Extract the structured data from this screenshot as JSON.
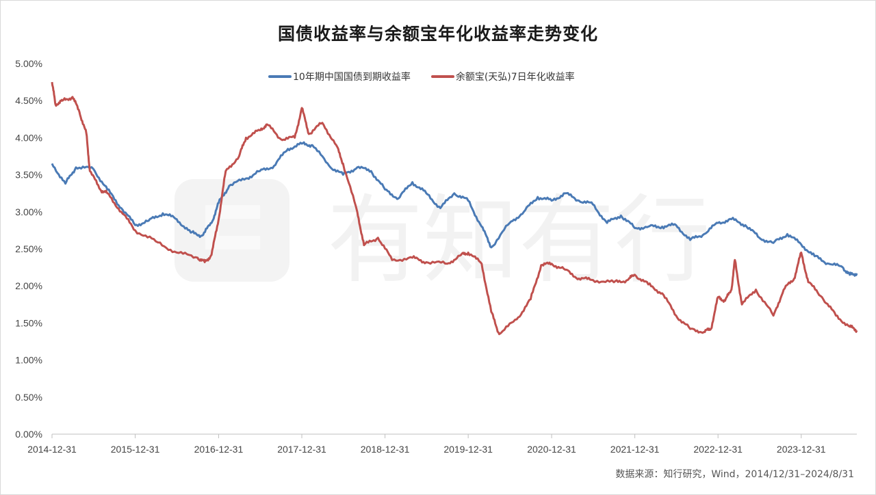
{
  "chart_data": {
    "type": "line",
    "title": "国债收益率与余额宝年化收益率走势变化",
    "xlabel": "",
    "ylabel": "",
    "ylim": [
      0,
      5.0
    ],
    "y_ticks": [
      "0.00%",
      "0.50%",
      "1.00%",
      "1.50%",
      "2.00%",
      "2.50%",
      "3.00%",
      "3.50%",
      "4.00%",
      "4.50%",
      "5.00%"
    ],
    "x_ticks": [
      "2014-12-31",
      "2015-12-31",
      "2016-12-31",
      "2017-12-31",
      "2018-12-31",
      "2019-12-31",
      "2020-12-31",
      "2021-12-31",
      "2022-12-31",
      "2023-12-31"
    ],
    "x_range": [
      "2014-12-31",
      "2024-08-31"
    ],
    "grid": false,
    "legend_position": "top",
    "series": [
      {
        "name": "10年期中国国债到期收益率",
        "color": "#4a7ab5",
        "points": [
          [
            "2014-12-31",
            3.65
          ],
          [
            "2015-02-28",
            3.38
          ],
          [
            "2015-04-15",
            3.6
          ],
          [
            "2015-06-30",
            3.58
          ],
          [
            "2015-08-31",
            3.3
          ],
          [
            "2015-10-31",
            3.05
          ],
          [
            "2015-12-31",
            2.82
          ],
          [
            "2016-02-28",
            2.88
          ],
          [
            "2016-04-30",
            2.98
          ],
          [
            "2016-06-30",
            2.9
          ],
          [
            "2016-08-31",
            2.72
          ],
          [
            "2016-10-20",
            2.68
          ],
          [
            "2016-11-30",
            2.85
          ],
          [
            "2016-12-31",
            3.12
          ],
          [
            "2017-02-15",
            3.35
          ],
          [
            "2017-04-30",
            3.45
          ],
          [
            "2017-06-30",
            3.55
          ],
          [
            "2017-08-31",
            3.62
          ],
          [
            "2017-10-31",
            3.85
          ],
          [
            "2017-12-31",
            3.92
          ],
          [
            "2018-02-15",
            3.9
          ],
          [
            "2018-04-30",
            3.62
          ],
          [
            "2018-06-30",
            3.5
          ],
          [
            "2018-08-31",
            3.6
          ],
          [
            "2018-10-31",
            3.55
          ],
          [
            "2018-12-31",
            3.3
          ],
          [
            "2019-02-28",
            3.18
          ],
          [
            "2019-04-30",
            3.4
          ],
          [
            "2019-06-30",
            3.25
          ],
          [
            "2019-08-31",
            3.05
          ],
          [
            "2019-10-31",
            3.25
          ],
          [
            "2019-12-31",
            3.15
          ],
          [
            "2020-02-28",
            2.8
          ],
          [
            "2020-04-10",
            2.52
          ],
          [
            "2020-06-30",
            2.85
          ],
          [
            "2020-08-31",
            3.0
          ],
          [
            "2020-10-31",
            3.2
          ],
          [
            "2020-12-31",
            3.15
          ],
          [
            "2021-02-28",
            3.25
          ],
          [
            "2021-04-30",
            3.15
          ],
          [
            "2021-06-30",
            3.1
          ],
          [
            "2021-08-31",
            2.85
          ],
          [
            "2021-10-31",
            2.95
          ],
          [
            "2021-12-31",
            2.78
          ],
          [
            "2022-02-28",
            2.8
          ],
          [
            "2022-04-30",
            2.8
          ],
          [
            "2022-06-30",
            2.82
          ],
          [
            "2022-08-31",
            2.62
          ],
          [
            "2022-10-31",
            2.7
          ],
          [
            "2022-12-31",
            2.85
          ],
          [
            "2023-02-28",
            2.9
          ],
          [
            "2023-04-30",
            2.82
          ],
          [
            "2023-06-30",
            2.65
          ],
          [
            "2023-08-31",
            2.58
          ],
          [
            "2023-10-31",
            2.7
          ],
          [
            "2023-12-31",
            2.56
          ],
          [
            "2024-02-28",
            2.4
          ],
          [
            "2024-04-30",
            2.3
          ],
          [
            "2024-06-30",
            2.25
          ],
          [
            "2024-07-31",
            2.15
          ],
          [
            "2024-08-31",
            2.17
          ]
        ]
      },
      {
        "name": "余额宝(天弘)7日年化收益率",
        "color": "#c0504d",
        "points": [
          [
            "2014-12-31",
            4.75
          ],
          [
            "2015-01-15",
            4.45
          ],
          [
            "2015-02-15",
            4.5
          ],
          [
            "2015-03-31",
            4.55
          ],
          [
            "2015-04-30",
            4.35
          ],
          [
            "2015-05-31",
            4.05
          ],
          [
            "2015-06-15",
            3.55
          ],
          [
            "2015-07-31",
            3.3
          ],
          [
            "2015-08-31",
            3.25
          ],
          [
            "2015-10-31",
            3.0
          ],
          [
            "2015-12-31",
            2.75
          ],
          [
            "2016-03-31",
            2.6
          ],
          [
            "2016-06-30",
            2.45
          ],
          [
            "2016-09-30",
            2.38
          ],
          [
            "2016-10-31",
            2.32
          ],
          [
            "2016-11-30",
            2.42
          ],
          [
            "2016-12-31",
            2.9
          ],
          [
            "2017-01-31",
            3.55
          ],
          [
            "2017-03-31",
            3.75
          ],
          [
            "2017-04-30",
            4.0
          ],
          [
            "2017-06-30",
            4.1
          ],
          [
            "2017-07-31",
            4.18
          ],
          [
            "2017-09-30",
            3.98
          ],
          [
            "2017-11-30",
            4.0
          ],
          [
            "2017-12-31",
            4.4
          ],
          [
            "2018-01-31",
            4.05
          ],
          [
            "2018-03-31",
            4.2
          ],
          [
            "2018-05-31",
            3.9
          ],
          [
            "2018-06-30",
            3.65
          ],
          [
            "2018-08-31",
            3.0
          ],
          [
            "2018-09-30",
            2.55
          ],
          [
            "2018-11-30",
            2.65
          ],
          [
            "2019-01-31",
            2.35
          ],
          [
            "2019-04-30",
            2.38
          ],
          [
            "2019-06-30",
            2.32
          ],
          [
            "2019-09-30",
            2.3
          ],
          [
            "2019-11-30",
            2.42
          ],
          [
            "2019-12-31",
            2.45
          ],
          [
            "2020-02-28",
            2.3
          ],
          [
            "2020-04-10",
            1.65
          ],
          [
            "2020-05-15",
            1.35
          ],
          [
            "2020-07-31",
            1.55
          ],
          [
            "2020-09-30",
            1.82
          ],
          [
            "2020-11-15",
            2.28
          ],
          [
            "2020-12-31",
            2.3
          ],
          [
            "2021-02-28",
            2.22
          ],
          [
            "2021-04-30",
            2.1
          ],
          [
            "2021-06-30",
            2.08
          ],
          [
            "2021-09-30",
            2.05
          ],
          [
            "2021-11-30",
            2.08
          ],
          [
            "2021-12-31",
            2.15
          ],
          [
            "2022-02-28",
            2.02
          ],
          [
            "2022-04-30",
            1.9
          ],
          [
            "2022-06-30",
            1.6
          ],
          [
            "2022-08-31",
            1.42
          ],
          [
            "2022-10-31",
            1.38
          ],
          [
            "2022-11-30",
            1.42
          ],
          [
            "2022-12-31",
            1.85
          ],
          [
            "2023-01-31",
            1.8
          ],
          [
            "2023-02-28",
            1.95
          ],
          [
            "2023-03-15",
            2.35
          ],
          [
            "2023-04-15",
            1.75
          ],
          [
            "2023-06-15",
            1.95
          ],
          [
            "2023-08-31",
            1.6
          ],
          [
            "2023-10-15",
            1.95
          ],
          [
            "2023-11-30",
            2.1
          ],
          [
            "2023-12-31",
            2.45
          ],
          [
            "2024-01-31",
            2.05
          ],
          [
            "2024-03-31",
            1.85
          ],
          [
            "2024-05-31",
            1.6
          ],
          [
            "2024-07-31",
            1.45
          ],
          [
            "2024-08-31",
            1.4
          ]
        ]
      }
    ],
    "source": "数据来源：知行研究，Wind，2014/12/31–2024/8/31"
  },
  "watermark": {
    "text": "有知有行"
  }
}
